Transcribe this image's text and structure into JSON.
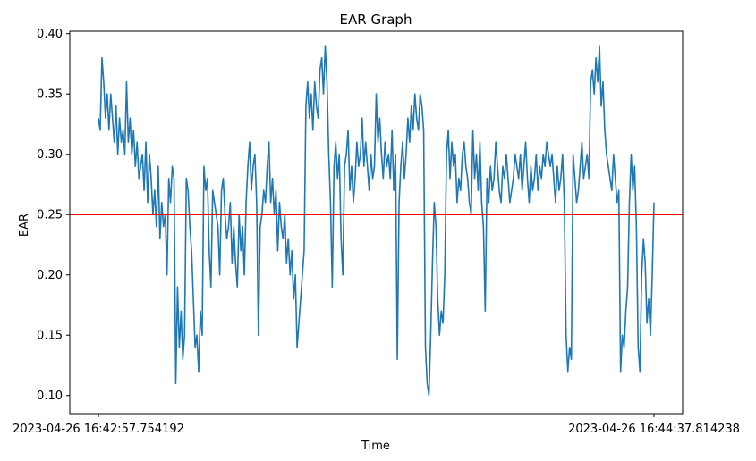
{
  "chart_data": {
    "type": "line",
    "title": "EAR Graph",
    "xlabel": "Time",
    "ylabel": "EAR",
    "x_tick_labels": [
      "2023-04-26 16:42:57.754192",
      "2023-04-26 16:44:37.814238"
    ],
    "y_ticks": [
      0.1,
      0.15,
      0.2,
      0.25,
      0.3,
      0.35,
      0.4
    ],
    "y_tick_labels": [
      "0.10",
      "0.15",
      "0.20",
      "0.25",
      "0.30",
      "0.35",
      "0.40"
    ],
    "ylim": [
      0.085,
      0.402
    ],
    "grid": false,
    "threshold": {
      "value": 0.25,
      "color": "#ff0000"
    },
    "series": [
      {
        "color": "#1f77b4",
        "values": [
          0.33,
          0.32,
          0.38,
          0.36,
          0.33,
          0.35,
          0.32,
          0.35,
          0.33,
          0.31,
          0.34,
          0.3,
          0.33,
          0.31,
          0.32,
          0.3,
          0.36,
          0.31,
          0.33,
          0.3,
          0.32,
          0.29,
          0.31,
          0.28,
          0.29,
          0.3,
          0.27,
          0.31,
          0.26,
          0.3,
          0.28,
          0.25,
          0.27,
          0.24,
          0.29,
          0.23,
          0.26,
          0.24,
          0.25,
          0.2,
          0.28,
          0.26,
          0.29,
          0.28,
          0.11,
          0.19,
          0.14,
          0.17,
          0.13,
          0.15,
          0.28,
          0.27,
          0.24,
          0.22,
          0.18,
          0.14,
          0.15,
          0.12,
          0.17,
          0.15,
          0.29,
          0.27,
          0.28,
          0.22,
          0.19,
          0.27,
          0.26,
          0.25,
          0.24,
          0.2,
          0.27,
          0.28,
          0.25,
          0.23,
          0.24,
          0.26,
          0.21,
          0.24,
          0.21,
          0.19,
          0.25,
          0.22,
          0.24,
          0.2,
          0.26,
          0.29,
          0.31,
          0.27,
          0.29,
          0.3,
          0.26,
          0.15,
          0.24,
          0.25,
          0.27,
          0.26,
          0.29,
          0.31,
          0.26,
          0.28,
          0.25,
          0.27,
          0.22,
          0.26,
          0.24,
          0.23,
          0.25,
          0.21,
          0.23,
          0.2,
          0.22,
          0.18,
          0.2,
          0.14,
          0.16,
          0.18,
          0.2,
          0.22,
          0.34,
          0.36,
          0.33,
          0.35,
          0.32,
          0.36,
          0.34,
          0.33,
          0.37,
          0.38,
          0.35,
          0.39,
          0.36,
          0.3,
          0.26,
          0.19,
          0.29,
          0.31,
          0.28,
          0.3,
          0.23,
          0.2,
          0.29,
          0.3,
          0.32,
          0.27,
          0.29,
          0.26,
          0.28,
          0.31,
          0.29,
          0.3,
          0.33,
          0.29,
          0.31,
          0.29,
          0.27,
          0.3,
          0.28,
          0.29,
          0.35,
          0.31,
          0.33,
          0.3,
          0.28,
          0.31,
          0.29,
          0.3,
          0.28,
          0.32,
          0.27,
          0.3,
          0.13,
          0.26,
          0.29,
          0.31,
          0.28,
          0.3,
          0.33,
          0.31,
          0.34,
          0.32,
          0.35,
          0.33,
          0.32,
          0.35,
          0.34,
          0.32,
          0.14,
          0.11,
          0.1,
          0.15,
          0.21,
          0.26,
          0.24,
          0.18,
          0.15,
          0.17,
          0.16,
          0.2,
          0.3,
          0.32,
          0.28,
          0.31,
          0.29,
          0.3,
          0.26,
          0.28,
          0.27,
          0.3,
          0.31,
          0.29,
          0.28,
          0.26,
          0.25,
          0.32,
          0.28,
          0.3,
          0.27,
          0.31,
          0.26,
          0.24,
          0.17,
          0.28,
          0.26,
          0.29,
          0.27,
          0.28,
          0.31,
          0.29,
          0.27,
          0.26,
          0.29,
          0.28,
          0.3,
          0.28,
          0.26,
          0.27,
          0.28,
          0.3,
          0.29,
          0.28,
          0.3,
          0.27,
          0.29,
          0.31,
          0.28,
          0.26,
          0.29,
          0.27,
          0.28,
          0.3,
          0.27,
          0.29,
          0.28,
          0.3,
          0.29,
          0.31,
          0.3,
          0.29,
          0.3,
          0.28,
          0.26,
          0.29,
          0.27,
          0.28,
          0.3,
          0.26,
          0.15,
          0.12,
          0.14,
          0.13,
          0.3,
          0.28,
          0.26,
          0.27,
          0.29,
          0.31,
          0.28,
          0.29,
          0.3,
          0.28,
          0.36,
          0.37,
          0.35,
          0.38,
          0.36,
          0.39,
          0.34,
          0.36,
          0.32,
          0.3,
          0.29,
          0.28,
          0.27,
          0.3,
          0.28,
          0.26,
          0.27,
          0.12,
          0.15,
          0.14,
          0.17,
          0.19,
          0.26,
          0.3,
          0.27,
          0.29,
          0.24,
          0.14,
          0.12,
          0.2,
          0.23,
          0.21,
          0.16,
          0.18,
          0.15,
          0.2,
          0.26
        ]
      }
    ]
  }
}
